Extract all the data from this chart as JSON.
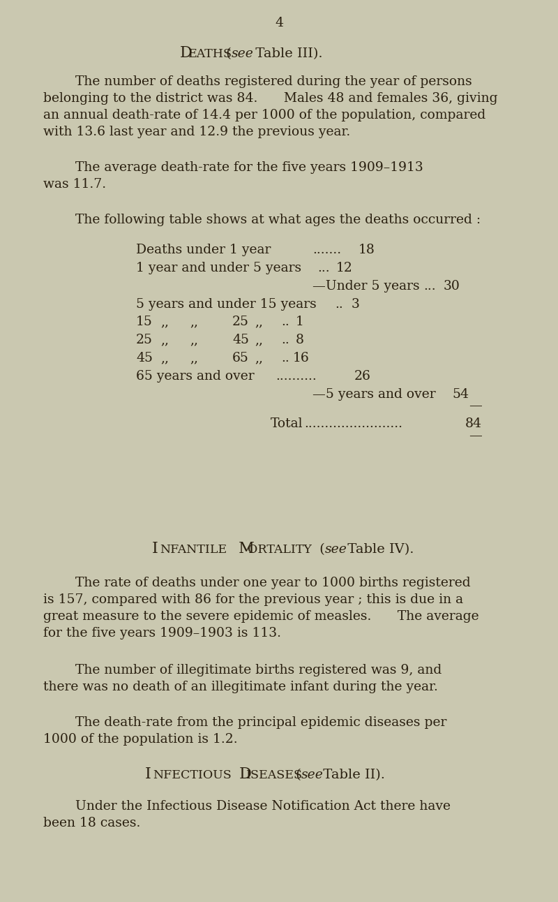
{
  "background_color": "#cac8b0",
  "page_number": "4",
  "text_color": "#2a2010",
  "title1_normal": "DEATHS ",
  "title1_italic": "see",
  "title1_rest": " Table III).",
  "title1_paren": "(",
  "para1_line1": "The number of deaths registered during the year of persons",
  "para1_line2": "belonging to the district was 84.  Males 48 and females 36, giving",
  "para1_line3": "an annual death-rate of 14.4 per 1000 of the population, compared",
  "para1_line4": "with 13.6 last year and 12.9 the previous year.",
  "para2_line1": "The average death-rate for the five years 1909–1913",
  "para2_line2": "was 11.7.",
  "para3_line1": "The following table shows at what ages the deaths occurred :",
  "tl1a": "Deaths under 1 year",
  "tl1b": ".......",
  "tl1c": "18",
  "tl2a": "1 year and under 5 years",
  "tl2b": "...",
  "tl2c": "12",
  "tl3a": "—Under 5 years",
  "tl3b": "...",
  "tl3c": "30",
  "tl4a": "5 years and under 15 years",
  "tl4b": "..",
  "tl4c": "3",
  "tl5_num": "15",
  "tl5_comma1": ",,",
  "tl5_comma2": ",,",
  "tl5_num2": "25",
  "tl5_comma3": ",,",
  "tl5_dots": "..",
  "tl5_val": "1",
  "tl6_num": "25",
  "tl6_comma1": ",,",
  "tl6_comma2": ",,",
  "tl6_num2": "45",
  "tl6_comma3": ",,",
  "tl6_dots": "..",
  "tl6_val": "8",
  "tl7_num": "45",
  "tl7_comma1": ",,",
  "tl7_comma2": ",,",
  "tl7_num2": "65",
  "tl7_comma3": ",,",
  "tl7_dots": "..",
  "tl7_val": "16",
  "tl8a": "65 years and over",
  "tl8b": "..........",
  "tl8c": "26",
  "tl9a": "—5 years and over",
  "tl9b": "54",
  "tl10": "—",
  "tl11a": "Total",
  "tl11b": "........................",
  "tl11c": "84",
  "tl12": "—",
  "title2_normal": "INFANTILE ",
  "title2_normal2": "MORTALITY ",
  "title2_italic": "see",
  "title2_rest": " Table IV).",
  "title2_paren": "(",
  "para4_line1": "The rate of deaths under one year to 1000 births registered",
  "para4_line2": "is 157, compared with 86 for the previous year ; this is due in a",
  "para4_line3": "great measure to the severe epidemic of measles.  The average",
  "para4_line4": "for the five years 1909–1903 is 113.",
  "para5_line1": "The number of illegitimate births registered was 9, and",
  "para5_line2": "there was no death of an illegitimate infant during the year.",
  "para6_line1": "The death-rate from the principal epidemic diseases per",
  "para6_line2": "1000 of the population is 1.2.",
  "title3_normal": "INFECTIOUS ",
  "title3_normal2": "DISEASES ",
  "title3_italic": "see",
  "title3_rest": " Table II).",
  "title3_paren": "(",
  "para7_line1": "Under the Infectious Disease Notification Act there have",
  "para7_line2": "been 18 cases."
}
